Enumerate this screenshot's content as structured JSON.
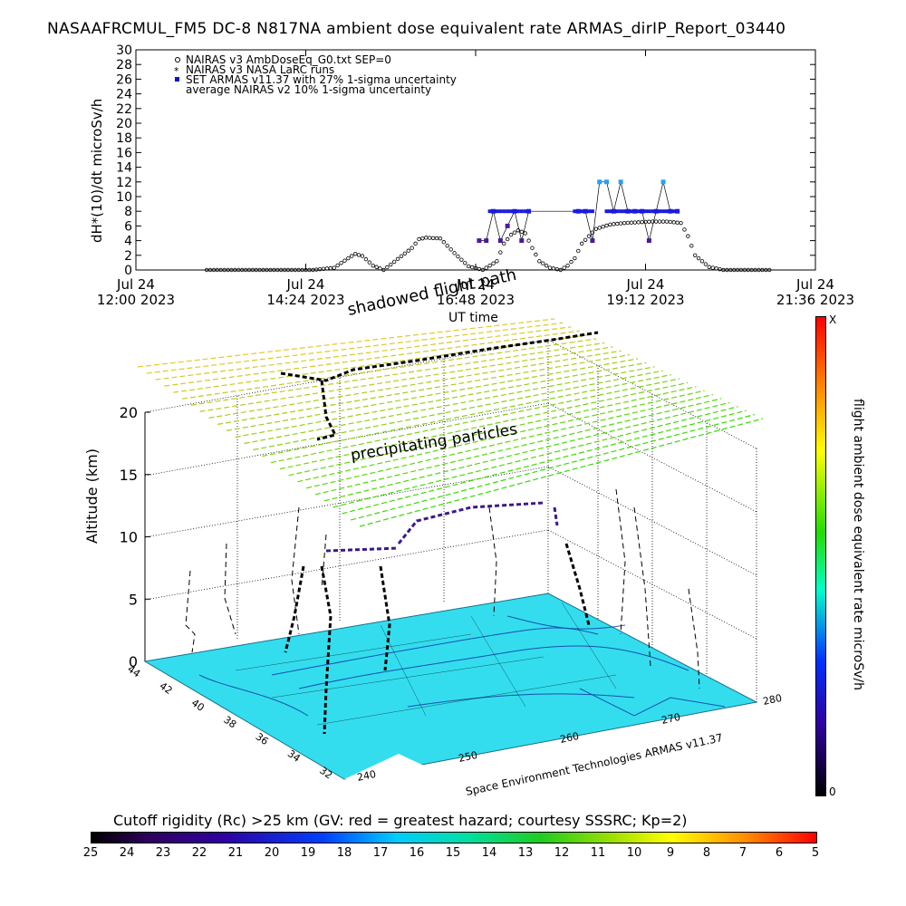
{
  "title": "NASAAFRCMUL_FM5 DC-8   N817NA ambient dose equivalent rate ARMAS_dirIP_Report_03440",
  "chart_data": [
    {
      "type": "scatter",
      "ylabel": "dH*(10)/dt microSv/h",
      "xlabel": "UT time",
      "xlim": [
        "2023-07-24 12:00",
        "2023-07-24 21:36"
      ],
      "ylim": [
        0,
        30
      ],
      "y_ticks": [
        0,
        2,
        4,
        6,
        8,
        10,
        12,
        14,
        16,
        18,
        20,
        22,
        24,
        26,
        28,
        30
      ],
      "x_ticks": [
        {
          "line1": "Jul 24",
          "line2": "12:00 2023"
        },
        {
          "line1": "Jul 24",
          "line2": "14:24 2023"
        },
        {
          "line1": "Jul 24",
          "line2": "16:48 2023"
        },
        {
          "line1": "Jul 24",
          "line2": "19:12 2023"
        },
        {
          "line1": "Jul 24",
          "line2": "21:36 2023"
        }
      ],
      "legend_position": "top-left",
      "series": [
        {
          "name": "NAIRAS v3 AmbDoseEq_G0.txt SEP=0",
          "marker": "open-circle",
          "color": "#000000",
          "x_hours": [
            13.0,
            13.5,
            14.0,
            14.5,
            14.8,
            15.0,
            15.1,
            15.2,
            15.35,
            15.5,
            15.7,
            15.9,
            16.0,
            16.1,
            16.3,
            16.5,
            16.7,
            16.9,
            17.1,
            17.2,
            17.3,
            17.4,
            17.5,
            17.6,
            17.7,
            17.85,
            18.0,
            18.1,
            18.2,
            18.3,
            18.5,
            18.7,
            18.9,
            19.1,
            19.3,
            19.5,
            19.7,
            19.8,
            19.9,
            20.1,
            20.3,
            20.6,
            21.0
          ],
          "y": [
            0,
            0,
            0,
            0,
            0.3,
            1.6,
            2.2,
            1.9,
            0.6,
            0,
            1.5,
            3.0,
            4.2,
            4.4,
            4.3,
            2.3,
            0.5,
            0,
            1.2,
            3.6,
            4.8,
            5.4,
            5.0,
            3.0,
            1.2,
            0.3,
            0,
            0.6,
            1.6,
            3.6,
            5.6,
            6.2,
            6.4,
            6.5,
            6.6,
            6.6,
            6.4,
            4.6,
            2.0,
            0.4,
            0,
            0,
            0
          ]
        },
        {
          "name": "NAIRAS v3 NASA LaRC runs",
          "marker": "asterisk",
          "color": "#000000",
          "x_hours": [],
          "y": []
        },
        {
          "name": "SET ARMAS v11.37 with 27% 1-sigma uncertainty",
          "marker": "filled-square",
          "color": "#1010d0",
          "x_hours": [
            16.85,
            16.95,
            17.05,
            17.15,
            17.25,
            17.35,
            17.45,
            17.55,
            18.25,
            18.35,
            18.45,
            18.55,
            18.65,
            18.75,
            18.85,
            18.95,
            19.05,
            19.15,
            19.25,
            19.35,
            19.45,
            19.55,
            19.65
          ],
          "y": [
            4,
            4,
            8,
            4,
            6,
            8,
            4,
            8,
            8,
            8,
            4,
            12,
            12,
            8,
            12,
            8,
            8,
            8,
            4,
            8,
            12,
            8,
            8
          ]
        },
        {
          "name": "average NAIRAS v2 10% 1-sigma uncertainty",
          "marker": "line",
          "color": "#000000",
          "x_hours": [],
          "y": []
        }
      ]
    },
    {
      "type": "other",
      "subtype": "3d-flight-path",
      "ylabel": "Altitude (km)",
      "z_ticks": [
        0,
        5,
        10,
        15,
        20
      ],
      "lat_ticks": [
        44,
        42,
        40,
        38,
        36,
        34,
        32
      ],
      "lon_ticks": [
        240,
        250,
        260,
        270,
        280
      ],
      "overlay_text_top": "shadowed flight path",
      "overlay_text_mid": "precipitating particles",
      "credit": "Space Environment Technologies ARMAS v11.37",
      "colorbar_label": "flight ambient dose equivalent rate microSv/h",
      "colorbar_top": "X",
      "colorbar_bottom": "0"
    },
    {
      "type": "heatmap",
      "subtype": "colorbar",
      "title": "Cutoff rigidity (Rc) >25 km (GV: red = greatest hazard; courtesy SSSRC; Kp=2)",
      "ticks": [
        25,
        24,
        23,
        22,
        21,
        20,
        19,
        18,
        17,
        16,
        15,
        14,
        13,
        12,
        11,
        10,
        9,
        8,
        7,
        6,
        5
      ]
    }
  ]
}
